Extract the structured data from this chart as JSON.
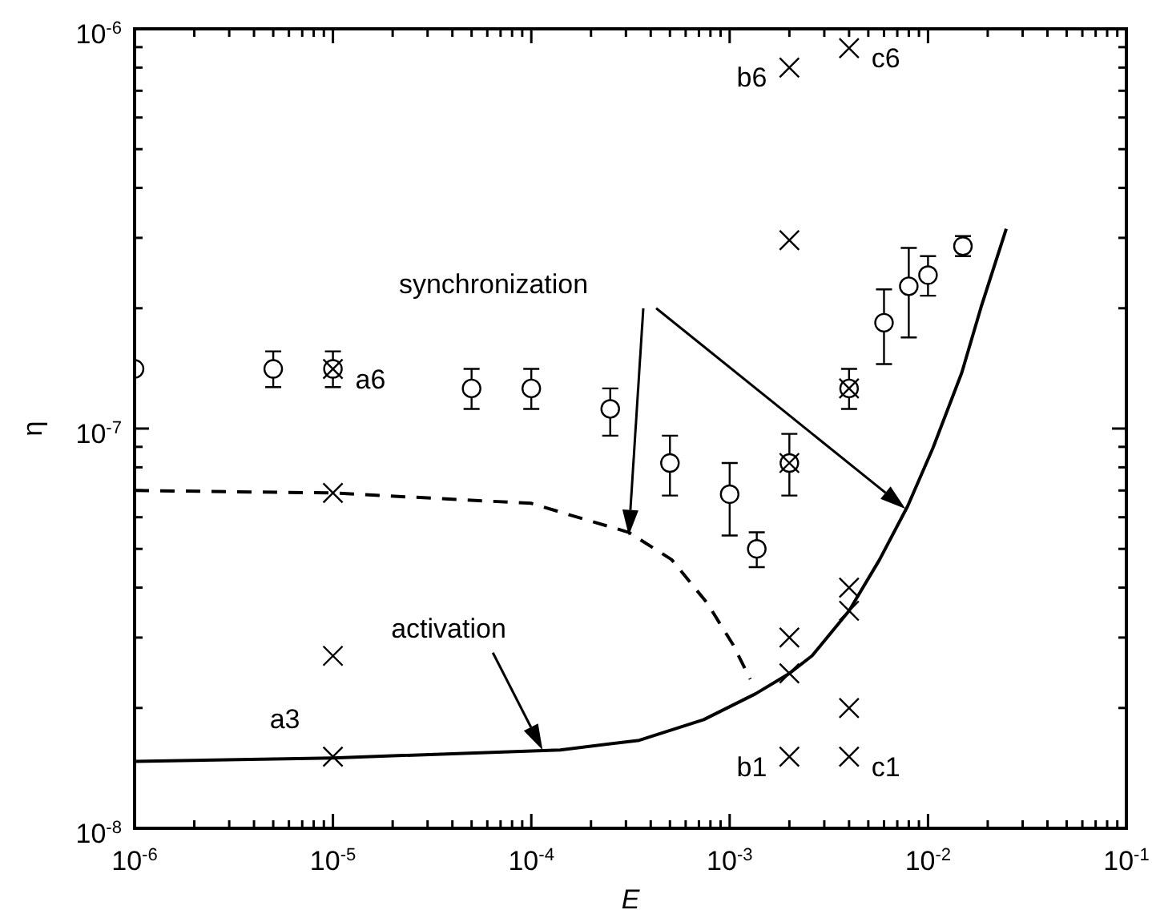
{
  "chart_data": {
    "type": "scatter",
    "xlabel": "E",
    "ylabel": "η",
    "log": "xy",
    "grid": false,
    "xlim": [
      1e-06,
      0.1
    ],
    "ylim": [
      1e-08,
      1e-06
    ],
    "xticks": [
      {
        "value": 1e-06,
        "label": "10$^{-6}$"
      },
      {
        "value": 2e-06,
        "label": null
      },
      {
        "value": 3e-06,
        "label": null
      },
      {
        "value": 4e-06,
        "label": null
      },
      {
        "value": 5e-06,
        "label": null
      },
      {
        "value": 6e-06,
        "label": null
      },
      {
        "value": 7e-06,
        "label": null
      },
      {
        "value": 8e-06,
        "label": null
      },
      {
        "value": 9e-06,
        "label": null
      },
      {
        "value": 1e-05,
        "label": "10$^{-5}$"
      },
      {
        "value": 2e-05,
        "label": null
      },
      {
        "value": 3e-05,
        "label": null
      },
      {
        "value": 4e-05,
        "label": null
      },
      {
        "value": 5e-05,
        "label": null
      },
      {
        "value": 6e-05,
        "label": null
      },
      {
        "value": 7e-05,
        "label": null
      },
      {
        "value": 8e-05,
        "label": null
      },
      {
        "value": 9e-05,
        "label": null
      },
      {
        "value": 0.0001,
        "label": "10$^{-4}$"
      },
      {
        "value": 0.0002,
        "label": null
      },
      {
        "value": 0.0003,
        "label": null
      },
      {
        "value": 0.0004,
        "label": null
      },
      {
        "value": 0.0005,
        "label": null
      },
      {
        "value": 0.0006,
        "label": null
      },
      {
        "value": 0.0007,
        "label": null
      },
      {
        "value": 0.0008,
        "label": null
      },
      {
        "value": 0.0009,
        "label": null
      },
      {
        "value": 0.001,
        "label": "10$^{-3}$"
      },
      {
        "value": 0.002,
        "label": null
      },
      {
        "value": 0.003,
        "label": null
      },
      {
        "value": 0.004,
        "label": null
      },
      {
        "value": 0.005,
        "label": null
      },
      {
        "value": 0.006,
        "label": null
      },
      {
        "value": 0.007,
        "label": null
      },
      {
        "value": 0.008,
        "label": null
      },
      {
        "value": 0.009,
        "label": null
      },
      {
        "value": 0.01,
        "label": "10$^{-2}$"
      },
      {
        "value": 0.02,
        "label": null
      },
      {
        "value": 0.03,
        "label": null
      },
      {
        "value": 0.04,
        "label": null
      },
      {
        "value": 0.05,
        "label": null
      },
      {
        "value": 0.06,
        "label": null
      },
      {
        "value": 0.07,
        "label": null
      },
      {
        "value": 0.08,
        "label": null
      },
      {
        "value": 0.09,
        "label": null
      },
      {
        "value": 0.1,
        "label": "10$^{-1}$"
      }
    ],
    "yticks": [
      {
        "value": 1e-08,
        "label": "10$^{-8}$"
      },
      {
        "value": 2e-08,
        "label": null
      },
      {
        "value": 3e-08,
        "label": null
      },
      {
        "value": 4e-08,
        "label": null
      },
      {
        "value": 5e-08,
        "label": null
      },
      {
        "value": 6e-08,
        "label": null
      },
      {
        "value": 7e-08,
        "label": null
      },
      {
        "value": 8e-08,
        "label": null
      },
      {
        "value": 9e-08,
        "label": null
      },
      {
        "value": 1e-07,
        "label": "10$^{-7}$"
      },
      {
        "value": 2e-07,
        "label": null
      },
      {
        "value": 3e-07,
        "label": null
      },
      {
        "value": 4e-07,
        "label": null
      },
      {
        "value": 5e-07,
        "label": null
      },
      {
        "value": 6e-07,
        "label": null
      },
      {
        "value": 7e-07,
        "label": null
      },
      {
        "value": 8e-07,
        "label": null
      },
      {
        "value": 9e-07,
        "label": null
      },
      {
        "value": 1e-06,
        "label": "10$^{-6}$"
      }
    ],
    "series": [
      {
        "marker": "circle",
        "color": "#000000",
        "x": [
          1e-06,
          5e-06,
          1e-05,
          5e-05,
          0.0001,
          0.00025,
          0.0005,
          0.001,
          0.00137,
          0.002,
          0.004,
          0.006,
          0.008,
          0.01,
          0.015
        ],
        "values": [
          1.41e-07,
          1.41e-07,
          1.41e-07,
          1.26e-07,
          1.26e-07,
          1.12e-07,
          8.2e-08,
          6.85e-08,
          5e-08,
          8.2e-08,
          1.26e-07,
          1.84e-07,
          2.27e-07,
          2.42e-07,
          2.86e-07
        ],
        "errors": [
          null,
          [
            1.27e-07,
            1.56e-07
          ],
          [
            1.27e-07,
            1.56e-07
          ],
          [
            1.12e-07,
            1.41e-07
          ],
          [
            1.12e-07,
            1.41e-07
          ],
          [
            9.6e-08,
            1.26e-07
          ],
          [
            6.8e-08,
            9.6e-08
          ],
          [
            5.4e-08,
            8.2e-08
          ],
          [
            4.5e-08,
            5.5e-08
          ],
          [
            6.8e-08,
            9.7e-08
          ],
          [
            1.12e-07,
            1.41e-07
          ],
          [
            1.45e-07,
            2.23e-07
          ],
          [
            1.69e-07,
            2.83e-07
          ],
          [
            2.15e-07,
            2.7e-07
          ],
          [
            2.7e-07,
            3.03e-07
          ]
        ]
      },
      {
        "marker": "cross",
        "color": "#000000",
        "x": [
          1e-05,
          1e-05,
          1e-05,
          1e-05,
          0.002,
          0.002,
          0.002,
          0.002,
          0.002,
          0.002,
          0.004,
          0.004,
          0.004,
          0.004,
          0.004,
          0.004
        ],
        "values": [
          1.41e-07,
          6.9e-08,
          2.7e-08,
          1.51e-08,
          8e-07,
          2.96e-07,
          8.2e-08,
          3e-08,
          2.44e-08,
          1.51e-08,
          8.95e-07,
          1.26e-07,
          4e-08,
          3.5e-08,
          2e-08,
          1.51e-08
        ]
      },
      {
        "type": "line",
        "line_style": "solid",
        "marker": "none",
        "color": "#000000",
        "x": [
          1e-06,
          1e-05,
          0.00014,
          0.00035,
          0.00074,
          0.00135,
          0.002,
          0.0026,
          0.004,
          0.0057,
          0.0079,
          0.0106,
          0.0148,
          0.0185,
          0.0248
        ],
        "values": [
          1.47e-08,
          1.5e-08,
          1.57e-08,
          1.66e-08,
          1.87e-08,
          2.17e-08,
          2.44e-08,
          2.7e-08,
          3.5e-08,
          4.7e-08,
          6.4e-08,
          8.95e-08,
          1.38e-07,
          2.01e-07,
          3.16e-07
        ]
      },
      {
        "type": "line",
        "line_style": "dashed",
        "marker": "none",
        "color": "#000000",
        "x": [
          1e-06,
          1e-05,
          0.0001,
          0.000153,
          0.00031,
          0.00051,
          0.00077,
          0.00104,
          0.00127
        ],
        "values": [
          7e-08,
          6.9e-08,
          6.5e-08,
          6.1e-08,
          5.5e-08,
          4.7e-08,
          3.66e-08,
          2.88e-08,
          2.36e-08
        ]
      }
    ],
    "annotations": [
      "synchronization",
      "activation",
      {
        "text": "a6",
        "x": 1e-05,
        "y": 1.41e-07
      },
      {
        "text": "a3",
        "x": 1e-05,
        "y": 1.51e-08
      },
      {
        "text": "b6",
        "x": 0.002,
        "y": 8e-07
      },
      {
        "text": "c6",
        "x": 0.004,
        "y": 8.95e-07
      },
      {
        "text": "b1",
        "x": 0.002,
        "y": 1.51e-08
      },
      {
        "text": "c1",
        "x": 0.004,
        "y": 1.51e-08
      }
    ]
  }
}
